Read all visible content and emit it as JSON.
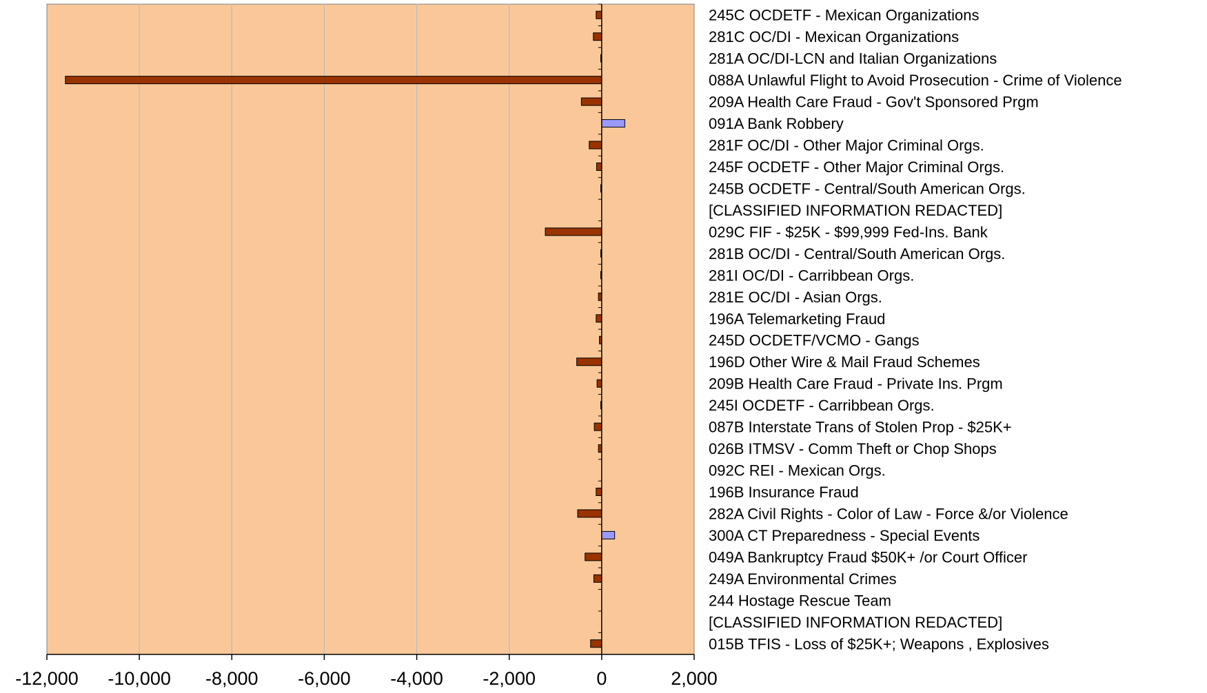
{
  "chart_data": {
    "type": "bar",
    "orientation": "horizontal",
    "categories": [
      "245C OCDETF - Mexican Organizations",
      "281C OC/DI - Mexican Organizations",
      "281A OC/DI-LCN and Italian Organizations",
      "088A Unlawful Flight to Avoid Prosecution - Crime of Violence",
      "209A Health Care Fraud - Gov't  Sponsored Prgm",
      "091A Bank Robbery",
      "281F OC/DI - Other Major Criminal Orgs.",
      "245F OCDETF - Other Major Criminal Orgs.",
      "245B OCDETF - Central/South American Orgs.",
      "[CLASSIFIED INFORMATION REDACTED]",
      "029C FIF - $25K - $99,999 Fed-Ins. Bank",
      "281B OC/DI - Central/South American Orgs.",
      "281I OC/DI - Carribbean Orgs.",
      "281E OC/DI - Asian Orgs.",
      "196A Telemarketing Fraud",
      "245D OCDETF/VCMO - Gangs",
      "196D Other Wire & Mail Fraud Schemes",
      "209B Health Care Fraud - Private Ins. Prgm",
      "245I OCDETF - Carribbean Orgs.",
      "087B Interstate Trans of Stolen Prop - $25K+",
      "026B ITMSV - Comm Theft or Chop Shops",
      "092C REI - Mexican Orgs.",
      "196B Insurance Fraud",
      "282A Civil Rights - Color of Law - Force &/or Violence",
      "300A CT Preparedness - Special Events",
      "049A Bankruptcy Fraud $50K+ /or Court Officer",
      "249A Environmental Crimes",
      "244 Hostage Rescue Team",
      "[CLASSIFIED INFORMATION REDACTED]",
      "015B TFIS - Loss of $25K+; Weapons , Explosives"
    ],
    "values": [
      -120,
      -180,
      -20,
      -11600,
      -440,
      500,
      -270,
      -110,
      -20,
      0,
      -1220,
      -20,
      -20,
      -70,
      -120,
      -50,
      -540,
      -100,
      -20,
      -160,
      -70,
      0,
      -120,
      -520,
      280,
      -360,
      -170,
      0,
      0,
      -240
    ],
    "xlim": [
      -12000,
      2000
    ],
    "xticks": [
      -12000,
      -10000,
      -8000,
      -6000,
      -4000,
      -2000,
      0,
      2000
    ],
    "xtick_labels": [
      "-12,000",
      "-10,000",
      "-8,000",
      "-6,000",
      "-4,000",
      "-2,000",
      "0",
      "2,000"
    ],
    "title": "",
    "xlabel": "",
    "ylabel": "",
    "grid": "vertical",
    "legend": "none",
    "colors": {
      "plot_background": "#FAC898",
      "negative_bar": "#993300",
      "positive_bar": "#9999FF",
      "bar_outline": "#000000",
      "grid": "#BBBBBB"
    }
  }
}
